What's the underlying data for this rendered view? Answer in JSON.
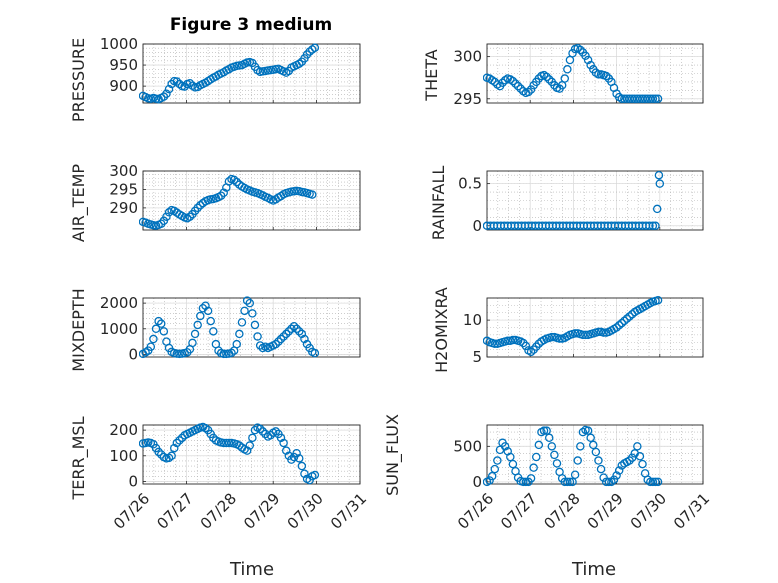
{
  "figure": {
    "title": "Figure 3 medium"
  },
  "colors": {
    "marker": "#0072BD",
    "axis": "#262626",
    "grid": "#b0b0b0"
  },
  "chart_data": [
    {
      "type": "scatter",
      "ylabel": "PRESSURE",
      "xlabel": "",
      "xlim": [
        "07/26",
        "07/31"
      ],
      "ylim": [
        860,
        1000
      ],
      "yticks": [
        900,
        950,
        1000
      ],
      "title": "Figure 3 medium",
      "x": [
        0.0,
        0.06,
        0.12,
        0.18,
        0.24,
        0.3,
        0.36,
        0.42,
        0.48,
        0.54,
        0.6,
        0.66,
        0.72,
        0.78,
        0.84,
        0.9,
        0.96,
        1.02,
        1.08,
        1.14,
        1.2,
        1.26,
        1.32,
        1.38,
        1.44,
        1.5,
        1.56,
        1.62,
        1.68,
        1.74,
        1.8,
        1.86,
        1.92,
        1.98,
        2.04,
        2.1,
        2.16,
        2.22,
        2.28,
        2.34,
        2.4,
        2.46,
        2.52,
        2.58,
        2.64,
        2.7,
        2.76,
        2.82,
        2.88,
        2.94,
        3.0,
        3.06,
        3.12,
        3.18,
        3.24,
        3.3,
        3.36,
        3.42,
        3.48,
        3.54,
        3.6,
        3.66,
        3.72,
        3.78,
        3.84,
        3.9,
        3.96
      ],
      "y": [
        877,
        874,
        871,
        870,
        872,
        870,
        869,
        872,
        875,
        882,
        893,
        905,
        912,
        911,
        905,
        900,
        899,
        905,
        907,
        901,
        897,
        898,
        902,
        905,
        908,
        912,
        916,
        920,
        923,
        927,
        930,
        933,
        937,
        940,
        944,
        946,
        948,
        949,
        950,
        953,
        956,
        957,
        955,
        946,
        938,
        934,
        935,
        936,
        937,
        938,
        939,
        940,
        941,
        938,
        935,
        932,
        936,
        944,
        947,
        950,
        953,
        958,
        966,
        975,
        982,
        987,
        991
      ]
    },
    {
      "type": "scatter",
      "ylabel": "THETA",
      "xlabel": "",
      "xlim": [
        "07/26",
        "07/31"
      ],
      "ylim": [
        294.5,
        301.5
      ],
      "yticks": [
        295,
        300
      ],
      "x": [
        0.0,
        0.06,
        0.12,
        0.18,
        0.24,
        0.3,
        0.36,
        0.42,
        0.48,
        0.54,
        0.6,
        0.66,
        0.72,
        0.78,
        0.84,
        0.9,
        0.96,
        1.02,
        1.08,
        1.14,
        1.2,
        1.26,
        1.32,
        1.38,
        1.44,
        1.5,
        1.56,
        1.62,
        1.68,
        1.74,
        1.8,
        1.86,
        1.92,
        1.98,
        2.04,
        2.1,
        2.16,
        2.22,
        2.28,
        2.34,
        2.4,
        2.46,
        2.52,
        2.58,
        2.64,
        2.7,
        2.76,
        2.82,
        2.88,
        2.94,
        3.0,
        3.06,
        3.12,
        3.18,
        3.24,
        3.3,
        3.36,
        3.42,
        3.48,
        3.54,
        3.6,
        3.66,
        3.72,
        3.78,
        3.84,
        3.9,
        3.96
      ],
      "y": [
        297.5,
        297.4,
        297.2,
        297.0,
        296.7,
        296.5,
        296.9,
        297.2,
        297.4,
        297.3,
        297.1,
        296.8,
        296.5,
        296.2,
        295.9,
        295.7,
        295.8,
        296.1,
        296.6,
        297.0,
        297.4,
        297.7,
        297.8,
        297.6,
        297.3,
        297.0,
        296.6,
        296.3,
        296.2,
        296.6,
        297.4,
        298.5,
        299.6,
        300.4,
        300.9,
        301.0,
        300.8,
        300.5,
        300.1,
        299.6,
        299.0,
        298.5,
        298.1,
        297.9,
        297.9,
        297.8,
        297.7,
        297.4,
        297.0,
        296.3,
        295.6,
        295.2,
        295.0,
        295.0,
        295.0,
        295.0,
        295.0,
        295.0,
        295.0,
        295.0,
        295.0,
        295.0,
        295.0,
        295.0,
        295.0,
        295.0,
        295.0
      ]
    },
    {
      "type": "scatter",
      "ylabel": "AIR_TEMP",
      "xlabel": "",
      "xlim": [
        "07/26",
        "07/31"
      ],
      "ylim": [
        284,
        300
      ],
      "yticks": [
        290,
        295,
        300
      ],
      "x": [
        0.0,
        0.06,
        0.12,
        0.18,
        0.24,
        0.3,
        0.36,
        0.42,
        0.48,
        0.54,
        0.6,
        0.66,
        0.72,
        0.78,
        0.84,
        0.9,
        0.96,
        1.02,
        1.08,
        1.14,
        1.2,
        1.26,
        1.32,
        1.38,
        1.44,
        1.5,
        1.56,
        1.62,
        1.68,
        1.74,
        1.8,
        1.86,
        1.92,
        1.98,
        2.04,
        2.1,
        2.16,
        2.22,
        2.28,
        2.34,
        2.4,
        2.46,
        2.52,
        2.58,
        2.64,
        2.7,
        2.76,
        2.82,
        2.88,
        2.94,
        3.0,
        3.06,
        3.12,
        3.18,
        3.24,
        3.3,
        3.36,
        3.42,
        3.48,
        3.54,
        3.6,
        3.66,
        3.72,
        3.78,
        3.84,
        3.9
      ],
      "y": [
        286.2,
        286.0,
        285.7,
        285.5,
        285.3,
        285.2,
        285.4,
        285.7,
        286.5,
        287.6,
        288.8,
        289.4,
        289.2,
        288.7,
        288.2,
        287.8,
        287.4,
        287.2,
        287.6,
        288.3,
        289.2,
        290.0,
        290.7,
        291.3,
        291.8,
        292.1,
        292.3,
        292.4,
        292.6,
        292.9,
        293.3,
        294.1,
        295.5,
        297.2,
        297.8,
        297.6,
        297.0,
        296.3,
        295.8,
        295.4,
        295.0,
        294.7,
        294.4,
        294.2,
        294.0,
        293.7,
        293.4,
        293.0,
        292.7,
        292.3,
        292.0,
        292.3,
        292.8,
        293.2,
        293.7,
        294.0,
        294.2,
        294.4,
        294.5,
        294.6,
        294.5,
        294.3,
        294.2,
        294.0,
        293.8,
        293.6
      ]
    },
    {
      "type": "scatter",
      "ylabel": "RAINFALL",
      "xlabel": "",
      "xlim": [
        "07/26",
        "07/31"
      ],
      "ylim": [
        -0.05,
        0.65
      ],
      "yticks": [
        0,
        0.5
      ],
      "x": [
        0.0,
        0.08,
        0.16,
        0.24,
        0.32,
        0.4,
        0.48,
        0.56,
        0.64,
        0.72,
        0.8,
        0.88,
        0.96,
        1.04,
        1.12,
        1.2,
        1.28,
        1.36,
        1.44,
        1.52,
        1.6,
        1.68,
        1.76,
        1.84,
        1.92,
        2.0,
        2.08,
        2.16,
        2.24,
        2.32,
        2.4,
        2.48,
        2.56,
        2.64,
        2.72,
        2.8,
        2.88,
        2.96,
        3.04,
        3.12,
        3.2,
        3.28,
        3.36,
        3.44,
        3.52,
        3.6,
        3.68,
        3.76,
        3.84,
        3.9,
        3.94,
        3.98,
        4.0
      ],
      "y": [
        0,
        0,
        0,
        0,
        0,
        0,
        0,
        0,
        0,
        0,
        0,
        0,
        0,
        0,
        0,
        0,
        0,
        0,
        0,
        0,
        0,
        0,
        0,
        0,
        0,
        0,
        0,
        0,
        0,
        0,
        0,
        0,
        0,
        0,
        0,
        0,
        0,
        0,
        0,
        0,
        0,
        0,
        0,
        0,
        0,
        0,
        0,
        0,
        0,
        0,
        0.2,
        0.6,
        0.5
      ]
    },
    {
      "type": "scatter",
      "ylabel": "MIXDEPTH",
      "xlabel": "",
      "xlim": [
        "07/26",
        "07/31"
      ],
      "ylim": [
        -100,
        2200
      ],
      "yticks": [
        0,
        1000,
        2000
      ],
      "x": [
        0.0,
        0.06,
        0.12,
        0.18,
        0.24,
        0.3,
        0.36,
        0.42,
        0.48,
        0.54,
        0.6,
        0.66,
        0.72,
        0.78,
        0.84,
        0.9,
        0.96,
        1.02,
        1.08,
        1.14,
        1.2,
        1.26,
        1.32,
        1.38,
        1.44,
        1.5,
        1.56,
        1.62,
        1.68,
        1.74,
        1.8,
        1.86,
        1.92,
        1.98,
        2.04,
        2.1,
        2.16,
        2.22,
        2.28,
        2.34,
        2.4,
        2.46,
        2.52,
        2.58,
        2.64,
        2.7,
        2.76,
        2.82,
        2.88,
        2.94,
        3.0,
        3.06,
        3.12,
        3.18,
        3.24,
        3.3,
        3.36,
        3.42,
        3.48,
        3.54,
        3.6,
        3.66,
        3.72,
        3.78,
        3.84,
        3.9,
        3.96
      ],
      "y": [
        20,
        80,
        150,
        300,
        600,
        1000,
        1300,
        1200,
        900,
        500,
        250,
        100,
        50,
        30,
        20,
        30,
        50,
        80,
        200,
        450,
        800,
        1150,
        1500,
        1800,
        1900,
        1700,
        1300,
        900,
        400,
        150,
        50,
        20,
        20,
        30,
        60,
        150,
        400,
        800,
        1250,
        1700,
        2100,
        2000,
        1600,
        1150,
        700,
        350,
        250,
        300,
        250,
        300,
        350,
        400,
        500,
        600,
        700,
        800,
        900,
        1000,
        1100,
        1000,
        900,
        800,
        600,
        400,
        250,
        100,
        50
      ]
    },
    {
      "type": "scatter",
      "ylabel": "H2OMIXRA",
      "xlabel": "",
      "xlim": [
        "07/26",
        "07/31"
      ],
      "ylim": [
        5,
        13
      ],
      "yticks": [
        5,
        10
      ],
      "x": [
        0.0,
        0.06,
        0.12,
        0.18,
        0.24,
        0.3,
        0.36,
        0.42,
        0.48,
        0.54,
        0.6,
        0.66,
        0.72,
        0.78,
        0.84,
        0.9,
        0.96,
        1.02,
        1.08,
        1.14,
        1.2,
        1.26,
        1.32,
        1.38,
        1.44,
        1.5,
        1.56,
        1.62,
        1.68,
        1.74,
        1.8,
        1.86,
        1.92,
        1.98,
        2.04,
        2.1,
        2.16,
        2.22,
        2.28,
        2.34,
        2.4,
        2.46,
        2.52,
        2.58,
        2.64,
        2.7,
        2.76,
        2.82,
        2.88,
        2.94,
        3.0,
        3.06,
        3.12,
        3.18,
        3.24,
        3.3,
        3.36,
        3.42,
        3.48,
        3.54,
        3.6,
        3.66,
        3.72,
        3.78,
        3.84,
        3.9,
        3.96
      ],
      "y": [
        7.2,
        7.0,
        6.9,
        6.8,
        6.8,
        6.9,
        7.0,
        7.1,
        7.2,
        7.2,
        7.3,
        7.3,
        7.2,
        7.1,
        6.9,
        6.5,
        5.9,
        5.7,
        6.0,
        6.4,
        6.8,
        7.1,
        7.3,
        7.5,
        7.6,
        7.7,
        7.7,
        7.6,
        7.5,
        7.5,
        7.6,
        7.8,
        8.0,
        8.1,
        8.2,
        8.2,
        8.1,
        8.0,
        8.0,
        8.0,
        8.1,
        8.2,
        8.3,
        8.4,
        8.4,
        8.3,
        8.3,
        8.4,
        8.6,
        8.8,
        9.0,
        9.3,
        9.6,
        9.9,
        10.2,
        10.5,
        10.8,
        11.1,
        11.3,
        11.5,
        11.7,
        11.9,
        12.1,
        12.3,
        12.5,
        12.6,
        12.7
      ]
    },
    {
      "type": "scatter",
      "ylabel": "TERR_MSL",
      "xlabel": "Time",
      "xlim": [
        "07/26",
        "07/31"
      ],
      "ylim": [
        -10,
        220
      ],
      "yticks": [
        0,
        100,
        200
      ],
      "xticks": [
        "07/26",
        "07/27",
        "07/28",
        "07/29",
        "07/30",
        "07/31"
      ],
      "x": [
        0.0,
        0.06,
        0.12,
        0.18,
        0.24,
        0.3,
        0.36,
        0.42,
        0.48,
        0.54,
        0.6,
        0.66,
        0.72,
        0.78,
        0.84,
        0.9,
        0.96,
        1.02,
        1.08,
        1.14,
        1.2,
        1.26,
        1.32,
        1.38,
        1.44,
        1.5,
        1.56,
        1.62,
        1.68,
        1.74,
        1.8,
        1.86,
        1.92,
        1.98,
        2.04,
        2.1,
        2.16,
        2.22,
        2.28,
        2.34,
        2.4,
        2.46,
        2.52,
        2.58,
        2.64,
        2.7,
        2.76,
        2.82,
        2.88,
        2.94,
        3.0,
        3.06,
        3.12,
        3.18,
        3.24,
        3.3,
        3.36,
        3.42,
        3.48,
        3.54,
        3.6,
        3.66,
        3.72,
        3.78,
        3.84,
        3.9,
        3.96
      ],
      "y": [
        148,
        150,
        152,
        150,
        145,
        130,
        115,
        105,
        95,
        90,
        92,
        100,
        130,
        150,
        160,
        170,
        180,
        185,
        190,
        195,
        200,
        205,
        210,
        212,
        208,
        200,
        185,
        170,
        160,
        155,
        152,
        150,
        150,
        150,
        150,
        148,
        145,
        140,
        132,
        125,
        120,
        140,
        170,
        200,
        210,
        205,
        195,
        185,
        175,
        180,
        190,
        195,
        185,
        170,
        150,
        120,
        100,
        85,
        95,
        110,
        90,
        60,
        30,
        10,
        5,
        20,
        25
      ]
    },
    {
      "type": "scatter",
      "ylabel": "SUN_FLUX",
      "xlabel": "Time",
      "xlim": [
        "07/26",
        "07/31"
      ],
      "ylim": [
        -30,
        800
      ],
      "yticks": [
        0,
        500
      ],
      "xticks": [
        "07/26",
        "07/27",
        "07/28",
        "07/29",
        "07/30",
        "07/31"
      ],
      "x": [
        0.0,
        0.06,
        0.12,
        0.18,
        0.24,
        0.3,
        0.36,
        0.42,
        0.48,
        0.54,
        0.6,
        0.66,
        0.72,
        0.78,
        0.84,
        0.9,
        0.96,
        1.02,
        1.08,
        1.14,
        1.2,
        1.26,
        1.32,
        1.38,
        1.44,
        1.5,
        1.56,
        1.62,
        1.68,
        1.74,
        1.8,
        1.86,
        1.92,
        1.98,
        2.04,
        2.1,
        2.16,
        2.22,
        2.28,
        2.34,
        2.4,
        2.46,
        2.52,
        2.58,
        2.64,
        2.7,
        2.76,
        2.82,
        2.88,
        2.94,
        3.0,
        3.06,
        3.12,
        3.18,
        3.24,
        3.3,
        3.36,
        3.42,
        3.48,
        3.54,
        3.6,
        3.66,
        3.72,
        3.78,
        3.84,
        3.9,
        3.96
      ],
      "y": [
        0,
        20,
        80,
        180,
        300,
        450,
        550,
        500,
        430,
        350,
        250,
        150,
        60,
        10,
        0,
        0,
        0,
        50,
        200,
        350,
        520,
        700,
        720,
        720,
        620,
        500,
        380,
        260,
        140,
        50,
        0,
        0,
        0,
        0,
        100,
        300,
        500,
        700,
        730,
        720,
        620,
        520,
        420,
        300,
        180,
        60,
        0,
        0,
        0,
        30,
        90,
        160,
        230,
        260,
        280,
        300,
        340,
        400,
        500,
        360,
        250,
        120,
        30,
        0,
        0,
        0,
        0
      ]
    }
  ]
}
